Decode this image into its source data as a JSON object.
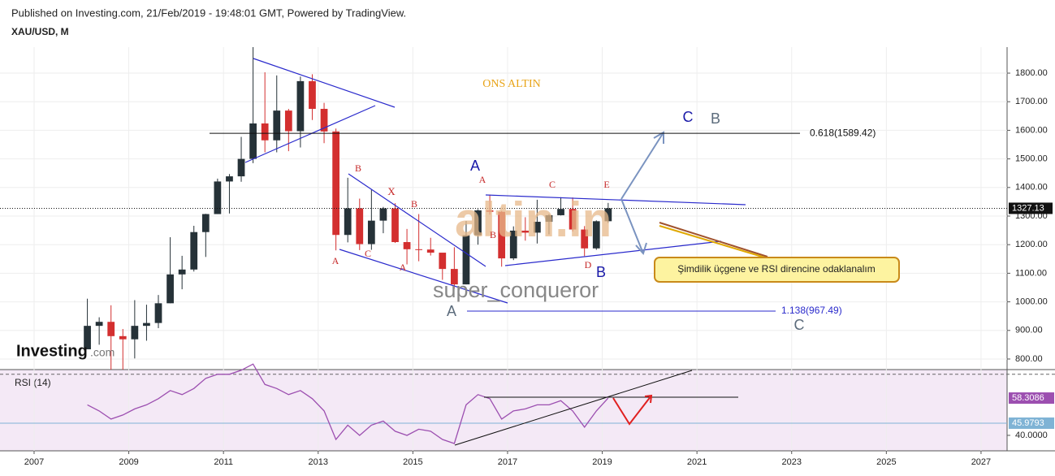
{
  "chart_data": {
    "type": "candlestick",
    "title": "Published on Investing.com, 21/Feb/2019 - 19:48:01 GMT, Powered by TradingView.",
    "symbol": "XAU/USD, M",
    "x": [
      2008.125,
      2008.375,
      2008.625,
      2008.875,
      2009.125,
      2009.375,
      2009.625,
      2009.875,
      2010.125,
      2010.375,
      2010.625,
      2010.875,
      2011.125,
      2011.375,
      2011.625,
      2011.875,
      2012.125,
      2012.375,
      2012.625,
      2012.875,
      2013.125,
      2013.375,
      2013.625,
      2013.875,
      2014.125,
      2014.375,
      2014.625,
      2014.875,
      2015.125,
      2015.375,
      2015.625,
      2015.875,
      2016.125,
      2016.375,
      2016.625,
      2016.875,
      2017.125,
      2017.375,
      2017.625,
      2017.875,
      2018.125,
      2018.375,
      2018.625,
      2018.875,
      2019.125
    ],
    "open": [
      834,
      916,
      930,
      880,
      869,
      916,
      926,
      995,
      1096,
      1113,
      1244,
      1307,
      1421,
      1439,
      1500,
      1624,
      1565,
      1669,
      1597,
      1772,
      1675,
      1596,
      1234,
      1327,
      1202,
      1284,
      1327,
      1209,
      1184,
      1183,
      1172,
      1115,
      1061,
      1233,
      1320,
      1315,
      1152,
      1249,
      1242,
      1280,
      1303,
      1325,
      1253,
      1187,
      1282
    ],
    "high": [
      1011,
      946,
      988,
      905,
      1006,
      990,
      1024,
      1226,
      1161,
      1266,
      1308,
      1431,
      1447,
      1577,
      1921,
      1803,
      1792,
      1675,
      1788,
      1796,
      1696,
      1606,
      1434,
      1361,
      1392,
      1332,
      1345,
      1255,
      1307,
      1224,
      1170,
      1191,
      1283,
      1324,
      1375,
      1318,
      1264,
      1296,
      1357,
      1307,
      1366,
      1365,
      1265,
      1285,
      1346
    ],
    "low": [
      834,
      850,
      740,
      681,
      802,
      864,
      908,
      995,
      1044,
      1106,
      1157,
      1307,
      1309,
      1420,
      1485,
      1523,
      1523,
      1527,
      1540,
      1636,
      1555,
      1180,
      1208,
      1181,
      1182,
      1240,
      1206,
      1131,
      1142,
      1162,
      1077,
      1046,
      1061,
      1200,
      1305,
      1123,
      1146,
      1214,
      1204,
      1236,
      1302,
      1246,
      1160,
      1182,
      1276
    ],
    "close": [
      916,
      930,
      880,
      869,
      916,
      926,
      995,
      1096,
      1113,
      1244,
      1307,
      1421,
      1439,
      1500,
      1624,
      1565,
      1669,
      1597,
      1772,
      1675,
      1596,
      1234,
      1327,
      1202,
      1284,
      1327,
      1209,
      1184,
      1183,
      1172,
      1115,
      1061,
      1233,
      1320,
      1315,
      1152,
      1249,
      1242,
      1280,
      1303,
      1325,
      1253,
      1187,
      1282,
      1327.13
    ],
    "up_color": "#263238",
    "down_color": "#d32f2f",
    "xlim": [
      2006.28,
      2027.55
    ],
    "xticks": [
      2007,
      2009,
      2011,
      2013,
      2015,
      2017,
      2019,
      2021,
      2023,
      2025,
      2027
    ],
    "ylim": [
      763,
      1891
    ],
    "yticks": [
      {
        "value": 800,
        "label": "800.00"
      },
      {
        "value": 900,
        "label": "900.00"
      },
      {
        "value": 1000,
        "label": "1000.00"
      },
      {
        "value": 1100,
        "label": "1100.00"
      },
      {
        "value": 1200,
        "label": "1200.00"
      },
      {
        "value": 1300,
        "label": "1300.00"
      },
      {
        "value": 1400,
        "label": "1400.00"
      },
      {
        "value": 1500,
        "label": "1500.00"
      },
      {
        "value": 1600,
        "label": "1600.00"
      },
      {
        "value": 1700,
        "label": "1700.00"
      },
      {
        "value": 1800,
        "label": "1800.00"
      }
    ],
    "last_price": 1327.13,
    "annotations": {
      "heading": "ONS ALTIN",
      "letters": [
        "A",
        "A",
        "C",
        "E",
        "B",
        "X",
        "B",
        "B",
        "A",
        "C",
        "A",
        "D",
        "B",
        "C",
        "B",
        "A",
        "C"
      ],
      "fib": [
        {
          "label": "0.618(1589.42)",
          "value": 1589.42
        },
        {
          "label": "1.138(967.49)",
          "value": 967.49
        }
      ],
      "callout": "Şimdilik üçgene ve RSI direncine odaklanalım",
      "watermark": "altin.in",
      "author": "super_conqueror",
      "logo": "Investing",
      "logo_suffix": ".com"
    },
    "rsi": {
      "label": "RSI (14)",
      "color": "#9c4fb0",
      "values": [
        55,
        52,
        48,
        50,
        53,
        55,
        58,
        62,
        60,
        63,
        68,
        70,
        70,
        72,
        75,
        65,
        63,
        60,
        62,
        58,
        52,
        38,
        45,
        40,
        45,
        47,
        42,
        40,
        43,
        42,
        38,
        36,
        55,
        60,
        58,
        48,
        52,
        53,
        55,
        55,
        57,
        52,
        44,
        52,
        58.3086
      ],
      "ylim": [
        32.4,
        72.3
      ],
      "yticks": [
        {
          "value": 40,
          "label": "40.0000"
        }
      ],
      "band": 70,
      "level": 45.9793,
      "level_color": "#7fb3d5"
    }
  }
}
